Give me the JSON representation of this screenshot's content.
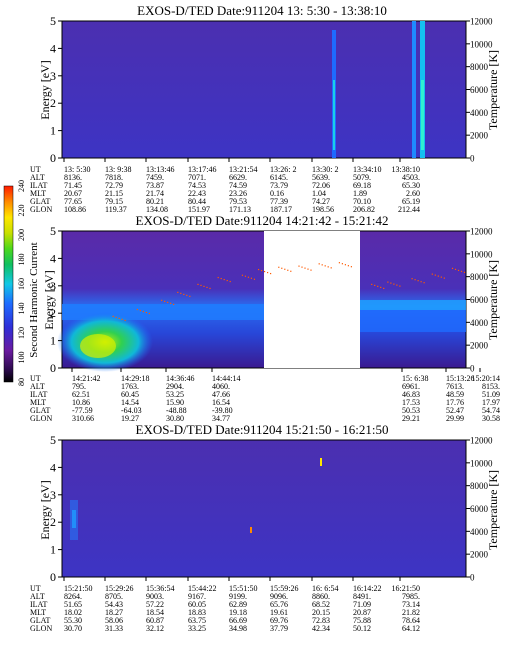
{
  "panels": [
    {
      "title": "EXOS-D/TED   Date:911204  13: 5:30 - 13:38:10",
      "ylabel": "Energy [eV]",
      "y2label": "Temperature [K]",
      "ylim": [
        0,
        5
      ],
      "y2lim": [
        0,
        12000
      ],
      "yticks": [
        "0",
        "1",
        "2",
        "3",
        "4",
        "5"
      ],
      "y2ticks": [
        "0",
        "2000",
        "4000",
        "6000",
        "8000",
        "10000",
        "12000"
      ],
      "table_labels": [
        "UT",
        "ALT",
        "ILAT",
        "MLT",
        "GLAT",
        "GLON"
      ],
      "columns": [
        [
          "13: 5:30",
          "8136.",
          "71.45",
          "20.67",
          "77.65",
          "108.86"
        ],
        [
          "13: 9:38",
          "7818.",
          "72.79",
          "21.15",
          "79.15",
          "119.37"
        ],
        [
          "13:13:46",
          "7459.",
          "73.87",
          "21.74",
          "80.21",
          "134.08"
        ],
        [
          "13:17:46",
          "7071.",
          "74.53",
          "22.43",
          "80.44",
          "151.97"
        ],
        [
          "13:21:54",
          "6629.",
          "74.59",
          "23.26",
          "79.53",
          "171.13"
        ],
        [
          "13:26: 2",
          "6145.",
          "73.79",
          "0.16",
          "77.39",
          "187.17"
        ],
        [
          "13:30: 2",
          "5639.",
          "72.06",
          "1.04",
          "74.27",
          "198.56"
        ],
        [
          "13:34:10",
          "5079.",
          "69.18",
          "1.89",
          "70.10",
          "206.82"
        ],
        [
          "13:38:10",
          "4503.",
          "65.30",
          "2.60",
          "65.19",
          "212.44"
        ]
      ]
    },
    {
      "title": "EXOS-D/TED   Date:911204  14:21:42 - 15:21:42",
      "ylabel": "Energy [eV]",
      "y2label": "Temperature [K]",
      "ylim": [
        0,
        5
      ],
      "y2lim": [
        0,
        12000
      ],
      "yticks": [
        "0",
        "1",
        "2",
        "3",
        "4",
        "5"
      ],
      "y2ticks": [
        "0",
        "2000",
        "4000",
        "6000",
        "8000",
        "10000",
        "12000"
      ],
      "table_labels": [
        "UT",
        "ALT",
        "ILAT",
        "MLT",
        "GLAT",
        "GLON"
      ],
      "columns": [
        [
          "14:21:42",
          "795.",
          "62.51",
          "10.86",
          "-77.59",
          "310.66"
        ],
        [
          "14:29:18",
          "1763.",
          "60.45",
          "14.54",
          "-64.03",
          "19.27"
        ],
        [
          "14:36:46",
          "2904.",
          "53.25",
          "15.90",
          "-48.88",
          "30.80"
        ],
        [
          "14:44:14",
          "4060.",
          "47.66",
          "16.54",
          "-39.80",
          "34.77"
        ],
        [
          "15: 6:38",
          "6961.",
          "46.83",
          "17.53",
          "50.53",
          "29.21"
        ],
        [
          "15:13:26",
          "7613.",
          "48.59",
          "17.76",
          "52.47",
          "29.99"
        ],
        [
          "15:20:14",
          "8153.",
          "51.09",
          "17.97",
          "54.74",
          "30.58"
        ]
      ],
      "colorbar": {
        "label": "Second Harmonic Current",
        "ticks": [
          "80",
          "100",
          "120",
          "140",
          "160",
          "180",
          "200",
          "220",
          "240"
        ],
        "range": [
          80,
          240
        ]
      }
    },
    {
      "title": "EXOS-D/TED   Date:911204  15:21:50 - 16:21:50",
      "ylabel": "Energy [eV]",
      "y2label": "Temperature [K]",
      "ylim": [
        0,
        5
      ],
      "y2lim": [
        0,
        12000
      ],
      "yticks": [
        "0",
        "1",
        "2",
        "3",
        "4",
        "5"
      ],
      "y2ticks": [
        "0",
        "2000",
        "4000",
        "6000",
        "8000",
        "10000",
        "12000"
      ],
      "table_labels": [
        "UT",
        "ALT",
        "ILAT",
        "MLT",
        "GLAT",
        "GLON"
      ],
      "columns": [
        [
          "15:21:50",
          "8264.",
          "51.65",
          "18.02",
          "55.30",
          "30.70"
        ],
        [
          "15:29:26",
          "8705.",
          "54.43",
          "18.27",
          "58.06",
          "31.33"
        ],
        [
          "15:36:54",
          "9003.",
          "57.22",
          "18.54",
          "60.87",
          "32.12"
        ],
        [
          "15:44:22",
          "9167.",
          "60.05",
          "18.83",
          "63.75",
          "33.25"
        ],
        [
          "15:51:50",
          "9199.",
          "62.89",
          "19.18",
          "66.69",
          "34.98"
        ],
        [
          "15:59:26",
          "9096.",
          "65.76",
          "19.61",
          "69.76",
          "37.79"
        ],
        [
          "16: 6:54",
          "8860.",
          "68.52",
          "20.15",
          "72.83",
          "42.34"
        ],
        [
          "16:14:22",
          "8491.",
          "71.09",
          "20.87",
          "75.88",
          "50.12"
        ],
        [
          "16:21:50",
          "7985.",
          "73.14",
          "21.82",
          "78.64",
          "64.12"
        ]
      ]
    }
  ],
  "chart_data": [
    {
      "type": "heatmap",
      "title": "EXOS-D/TED   Date:911204  13: 5:30 - 13:38:10",
      "ylabel": "Energy [eV]",
      "y2label": "Temperature [K]",
      "ylim": [
        0,
        5
      ],
      "y2lim": [
        0,
        12000
      ],
      "x": [
        "13: 5:30",
        "13: 9:38",
        "13:13:46",
        "13:17:46",
        "13:21:54",
        "13:26: 2",
        "13:30: 2",
        "13:34:10",
        "13:38:10"
      ],
      "background_level": 115,
      "features": [
        {
          "kind": "vertical-band",
          "x": "13:26:30",
          "level": 150
        },
        {
          "kind": "vertical-band",
          "x": "13:33:50",
          "level": 165
        },
        {
          "kind": "vertical-band",
          "x": "13:35:10",
          "level": 175
        }
      ]
    },
    {
      "type": "heatmap",
      "title": "EXOS-D/TED   Date:911204  14:21:42 - 15:21:42",
      "ylabel": "Energy [eV]",
      "y2label": "Temperature [K]",
      "ylim": [
        0,
        5
      ],
      "y2lim": [
        0,
        12000
      ],
      "x": [
        "14:21:42",
        "14:29:18",
        "14:36:46",
        "14:44:14",
        "15: 6:38",
        "15:13:26",
        "15:20:14"
      ],
      "data_gap": [
        "14:56:00",
        "15: 5:30"
      ],
      "colorbar": {
        "label": "Second Harmonic Current",
        "range": [
          80,
          240
        ]
      },
      "temperature_series": {
        "color": "#ff5a00",
        "points": [
          [
            0.14,
            4400
          ],
          [
            0.2,
            5000
          ],
          [
            0.26,
            5800
          ],
          [
            0.3,
            6500
          ],
          [
            0.35,
            7200
          ],
          [
            0.4,
            7800
          ],
          [
            0.46,
            8000
          ],
          [
            0.5,
            8500
          ],
          [
            0.55,
            8700
          ],
          [
            0.6,
            8800
          ],
          [
            0.65,
            9000
          ],
          [
            0.7,
            9100
          ],
          [
            0.78,
            7200
          ],
          [
            0.82,
            7400
          ],
          [
            0.88,
            7700
          ],
          [
            0.93,
            8100
          ],
          [
            0.98,
            8600
          ]
        ]
      }
    },
    {
      "type": "heatmap",
      "title": "EXOS-D/TED   Date:911204  15:21:50 - 16:21:50",
      "ylabel": "Energy [eV]",
      "y2label": "Temperature [K]",
      "ylim": [
        0,
        5
      ],
      "y2lim": [
        0,
        12000
      ],
      "x": [
        "15:21:50",
        "15:29:26",
        "15:36:54",
        "15:44:22",
        "15:51:50",
        "15:59:26",
        "16: 6:54",
        "16:14:22",
        "16:21:50"
      ],
      "background_level": 115,
      "features": [
        {
          "kind": "low-energy-enhancement",
          "x": "15:24:00",
          "energy": [
            1.2,
            2.6
          ],
          "level": 140
        },
        {
          "kind": "spot",
          "x": "15:57:30",
          "energy": 4.1,
          "level": 200
        },
        {
          "kind": "spot",
          "x": "15:55:00",
          "energy": 1.9,
          "level": 210
        }
      ]
    }
  ]
}
